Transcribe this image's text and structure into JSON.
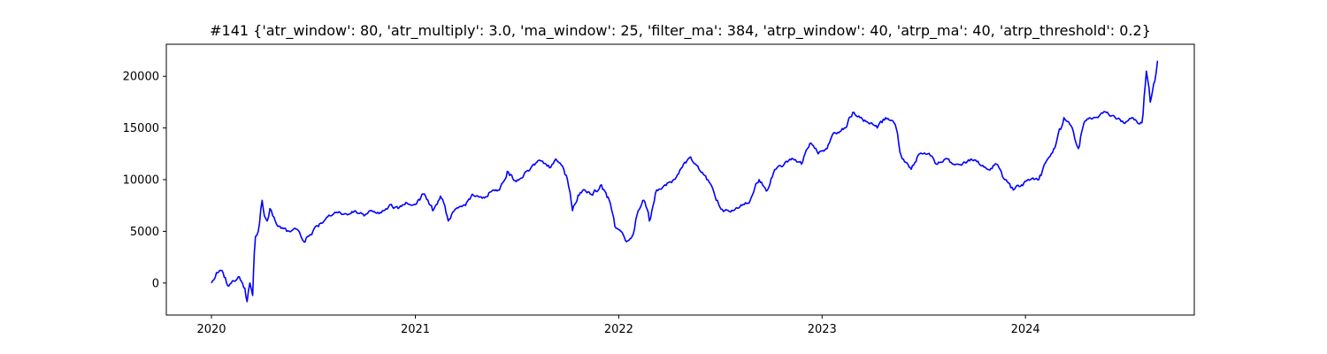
{
  "chart_data": {
    "type": "line",
    "title": "#141 {'atr_window': 80, 'atr_multiply': 3.0, 'ma_window': 25, 'filter_ma': 384, 'atrp_window': 40, 'atrp_ma': 40, 'atrp_threshold': 0.2}",
    "xlabel": "",
    "ylabel": "",
    "x_ticks": [
      "2020",
      "2021",
      "2022",
      "2023",
      "2024"
    ],
    "y_ticks": [
      0,
      5000,
      10000,
      15000,
      20000
    ],
    "xlim": [
      "2019-10-12",
      "2024-10-30"
    ],
    "ylim": [
      -3100,
      23100
    ],
    "grid": false,
    "color": "#0000ff",
    "series": [
      {
        "x": [
          "2020-01-01",
          "2020-01-10",
          "2020-01-20",
          "2020-02-01",
          "2020-02-10",
          "2020-02-20",
          "2020-03-01",
          "2020-03-05",
          "2020-03-10",
          "2020-03-15",
          "2020-03-18",
          "2020-03-20",
          "2020-03-25",
          "2020-04-01",
          "2020-04-05",
          "2020-04-10",
          "2020-04-15",
          "2020-04-20",
          "2020-05-01",
          "2020-05-15",
          "2020-06-01",
          "2020-06-15",
          "2020-07-01",
          "2020-07-15",
          "2020-08-01",
          "2020-08-15",
          "2020-09-01",
          "2020-09-15",
          "2020-10-01",
          "2020-10-15",
          "2020-11-01",
          "2020-11-15",
          "2020-12-01",
          "2020-12-15",
          "2021-01-01",
          "2021-01-15",
          "2021-02-01",
          "2021-02-15",
          "2021-03-01",
          "2021-03-15",
          "2021-04-01",
          "2021-04-15",
          "2021-05-01",
          "2021-05-15",
          "2021-06-01",
          "2021-06-15",
          "2021-07-01",
          "2021-07-15",
          "2021-08-01",
          "2021-08-15",
          "2021-09-01",
          "2021-09-10",
          "2021-09-20",
          "2021-10-01",
          "2021-10-10",
          "2021-10-20",
          "2021-11-01",
          "2021-11-15",
          "2021-12-01",
          "2021-12-15",
          "2021-12-25",
          "2022-01-05",
          "2022-01-15",
          "2022-01-25",
          "2022-02-05",
          "2022-02-15",
          "2022-02-25",
          "2022-03-10",
          "2022-03-25",
          "2022-04-10",
          "2022-04-25",
          "2022-05-10",
          "2022-05-25",
          "2022-06-10",
          "2022-06-25",
          "2022-07-10",
          "2022-07-25",
          "2022-08-10",
          "2022-08-25",
          "2022-09-10",
          "2022-09-25",
          "2022-10-10",
          "2022-10-25",
          "2022-11-10",
          "2022-11-25",
          "2022-12-10",
          "2022-12-25",
          "2023-01-10",
          "2023-01-25",
          "2023-02-10",
          "2023-02-25",
          "2023-03-10",
          "2023-03-25",
          "2023-04-10",
          "2023-04-25",
          "2023-05-10",
          "2023-05-25",
          "2023-06-10",
          "2023-06-25",
          "2023-07-10",
          "2023-07-25",
          "2023-08-10",
          "2023-08-25",
          "2023-09-10",
          "2023-09-25",
          "2023-10-10",
          "2023-10-25",
          "2023-11-10",
          "2023-11-25",
          "2023-12-10",
          "2023-12-25",
          "2024-01-10",
          "2024-01-25",
          "2024-02-10",
          "2024-02-25",
          "2024-03-10",
          "2024-03-25",
          "2024-04-05",
          "2024-04-15",
          "2024-04-25",
          "2024-05-10",
          "2024-05-25",
          "2024-06-10",
          "2024-06-25",
          "2024-07-10",
          "2024-07-20",
          "2024-07-28",
          "2024-08-05",
          "2024-08-12",
          "2024-08-20",
          "2024-08-25"
        ],
        "y": [
          0,
          1000,
          1200,
          -300,
          200,
          600,
          -500,
          -1800,
          0,
          -1200,
          3000,
          4500,
          5000,
          8000,
          6500,
          6000,
          7200,
          6500,
          5500,
          5000,
          5200,
          4000,
          5000,
          5800,
          6500,
          6800,
          6600,
          7000,
          6500,
          7000,
          6800,
          7500,
          7200,
          7800,
          7600,
          8600,
          7000,
          8400,
          6000,
          7200,
          7500,
          8500,
          8200,
          8800,
          9000,
          10800,
          9800,
          10500,
          11500,
          11800,
          11200,
          12000,
          11400,
          10000,
          7000,
          8500,
          9000,
          8500,
          9500,
          8000,
          5500,
          5000,
          4000,
          4500,
          7000,
          8000,
          6000,
          9000,
          9500,
          10000,
          11200,
          12200,
          11000,
          10000,
          8000,
          7000,
          7000,
          7500,
          8000,
          10000,
          9000,
          11000,
          11500,
          12000,
          11500,
          13500,
          12500,
          13000,
          14500,
          15000,
          16500,
          16000,
          15500,
          15000,
          16000,
          15500,
          12000,
          11000,
          12500,
          12500,
          11500,
          12000,
          11500,
          11500,
          12000,
          11500,
          11000,
          11500,
          10000,
          9000,
          9500,
          10000,
          10000,
          12000,
          13500,
          16000,
          15000,
          13000,
          15500,
          16000,
          16000,
          16500,
          16000,
          15500,
          16000,
          15500,
          15500,
          20500,
          17500,
          19500,
          21500
        ]
      }
    ]
  }
}
